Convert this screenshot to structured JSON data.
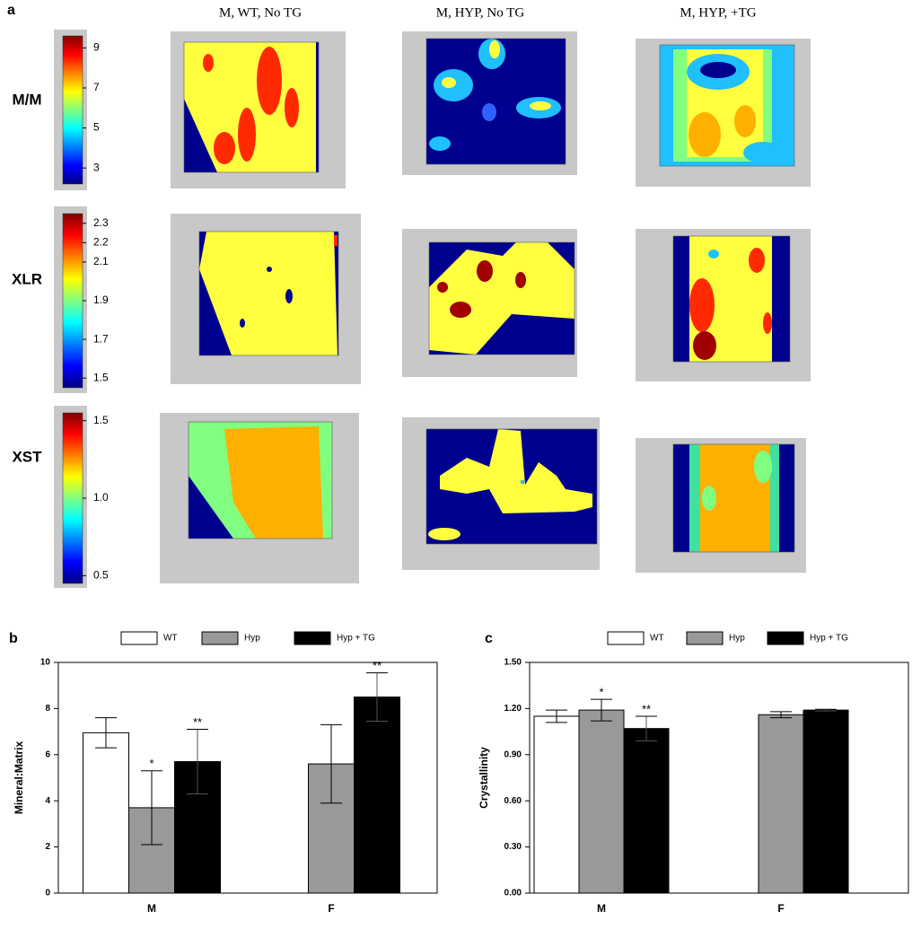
{
  "panel_a": {
    "label": "a",
    "columns": [
      "M, WT, No TG",
      "M, HYP, No TG",
      "M, HYP, +TG"
    ],
    "rows": [
      {
        "label": "M/M",
        "colorbar": {
          "lim": [
            2.2,
            9.6
          ],
          "ticks": [
            9,
            7,
            5,
            3
          ]
        }
      },
      {
        "label": "XLR",
        "colorbar": {
          "lim": [
            1.45,
            2.35
          ],
          "ticks": [
            2.3,
            2.2,
            2.1,
            1.9,
            1.7,
            1.5
          ]
        }
      },
      {
        "label": "XST",
        "colorbar": {
          "lim": [
            0.45,
            1.55
          ],
          "ticks": [
            1.5,
            {
              "value": 1,
              "label": "1.0"
            },
            0.5
          ]
        }
      }
    ]
  },
  "chart_data": [
    {
      "type": "bar",
      "panel_label": "b",
      "ylabel": "Mineral:Matrix",
      "categories": [
        "M",
        "F"
      ],
      "series": [
        {
          "name": "WT",
          "color": "#ffffff",
          "values": [
            6.95,
            null
          ],
          "errors": [
            0.65,
            null
          ],
          "significance": [
            null,
            null
          ]
        },
        {
          "name": "Hyp",
          "color": "#999999",
          "values": [
            3.7,
            5.6
          ],
          "errors": [
            1.6,
            1.7
          ],
          "significance": [
            "*",
            null
          ]
        },
        {
          "name": "Hyp + TG",
          "color": "#000000",
          "values": [
            5.7,
            8.5
          ],
          "errors": [
            1.4,
            1.05
          ],
          "significance": [
            "**",
            "**"
          ]
        }
      ],
      "ylim": [
        0,
        10
      ],
      "yticks": [
        0,
        2,
        4,
        6,
        8,
        10
      ]
    },
    {
      "type": "bar",
      "panel_label": "c",
      "ylabel": "Crystallinity",
      "categories": [
        "M",
        "F"
      ],
      "series": [
        {
          "name": "WT",
          "color": "#ffffff",
          "values": [
            1.15,
            null
          ],
          "errors": [
            0.04,
            null
          ],
          "significance": [
            null,
            null
          ]
        },
        {
          "name": "Hyp",
          "color": "#999999",
          "values": [
            1.19,
            1.16
          ],
          "errors": [
            0.07,
            0.02
          ],
          "significance": [
            "*",
            null
          ]
        },
        {
          "name": "Hyp + TG",
          "color": "#000000",
          "values": [
            1.07,
            1.19
          ],
          "errors": [
            0.08,
            0.005
          ],
          "significance": [
            "**",
            null
          ]
        }
      ],
      "ylim": [
        0,
        1.5
      ],
      "yticks": [
        {
          "value": 0,
          "label": "0.00"
        },
        {
          "value": 0.3,
          "label": "0.30"
        },
        {
          "value": 0.6,
          "label": "0.60"
        },
        {
          "value": 0.9,
          "label": "0.90"
        },
        {
          "value": 1.2,
          "label": "1.20"
        },
        {
          "value": 1.5,
          "label": "1.50"
        }
      ]
    }
  ]
}
